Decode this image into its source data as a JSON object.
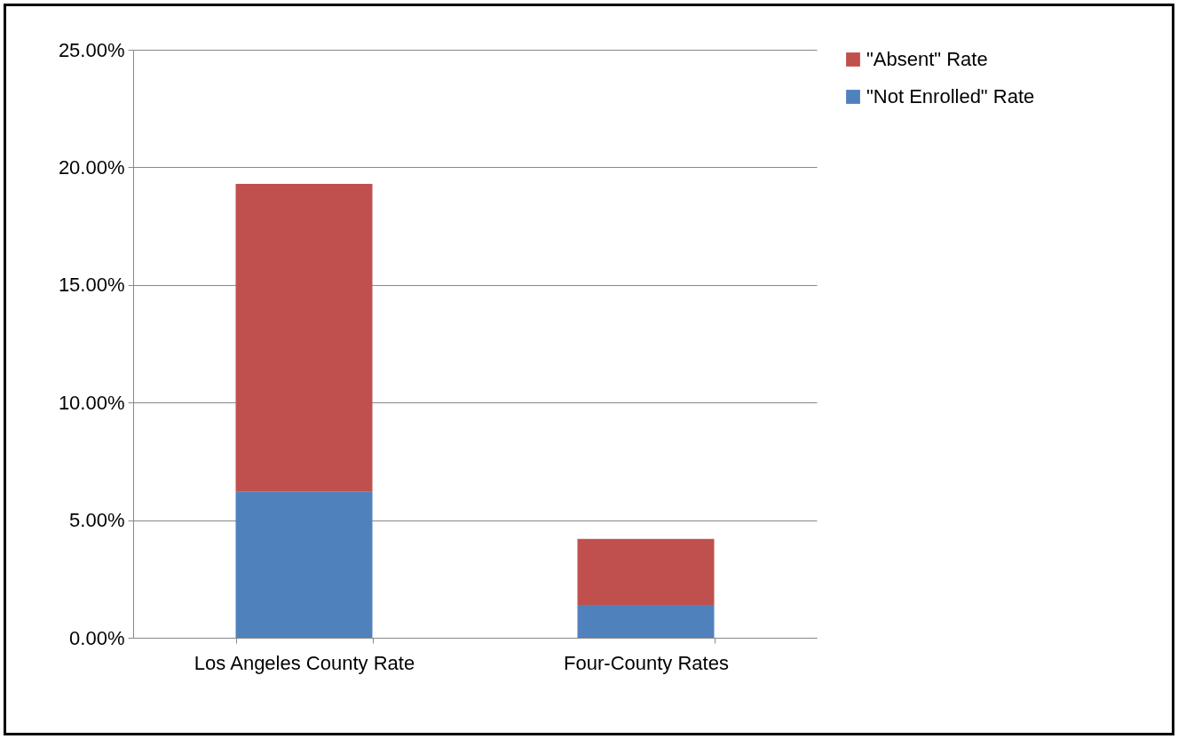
{
  "chart_data": {
    "type": "bar",
    "stacked": true,
    "categories": [
      "Los Angeles County Rate",
      "Four-County Rates"
    ],
    "series": [
      {
        "name": "\"Not Enrolled\" Rate",
        "color": "#4f81bd",
        "values": [
          6.2,
          1.4
        ]
      },
      {
        "name": "\"Absent\" Rate",
        "color": "#c0504d",
        "values": [
          13.1,
          2.8
        ]
      }
    ],
    "ylim": [
      0,
      25
    ],
    "yticks": [
      {
        "value": 0,
        "label": "0.00%"
      },
      {
        "value": 5,
        "label": "5.00%"
      },
      {
        "value": 10,
        "label": "10.00%"
      },
      {
        "value": 15,
        "label": "15.00%"
      },
      {
        "value": 20,
        "label": "20.00%"
      },
      {
        "value": 25,
        "label": "25.00%"
      }
    ],
    "grid": "y",
    "legend": "right"
  }
}
